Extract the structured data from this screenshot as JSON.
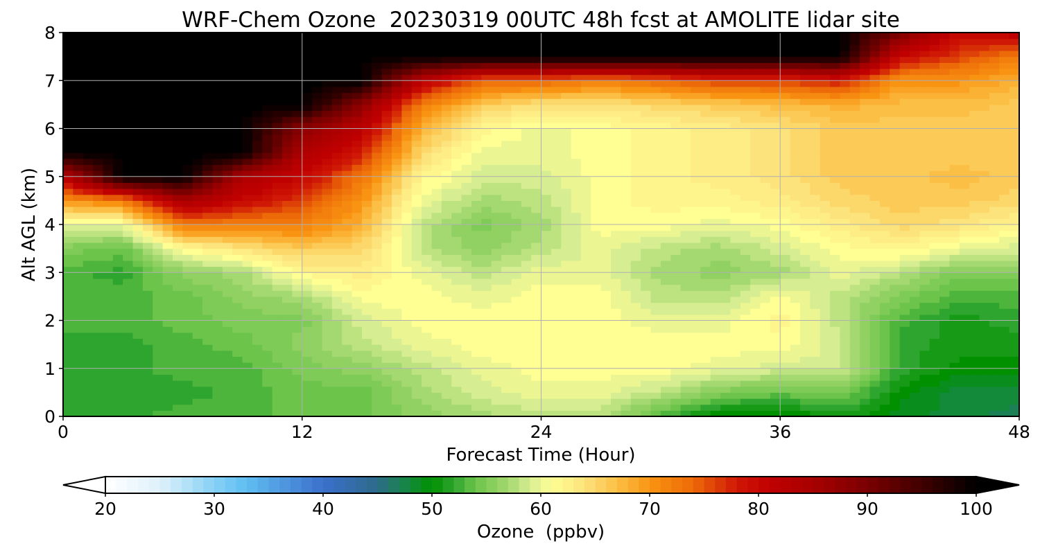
{
  "chart_data": {
    "type": "heatmap",
    "subtype": "filled-contour",
    "title": "WRF-Chem Ozone  20230319 00UTC 48h fcst at AMOLITE lidar site",
    "xlabel": "Forecast Time (Hour)",
    "ylabel": "Alt AGL (km)",
    "xlim": [
      0,
      48
    ],
    "ylim": [
      0,
      8
    ],
    "xticks": [
      0,
      12,
      24,
      36,
      48
    ],
    "yticks": [
      0,
      1,
      2,
      3,
      4,
      5,
      6,
      7,
      8
    ],
    "grid": true,
    "x": [
      0,
      3,
      6,
      9,
      12,
      15,
      18,
      21,
      24,
      27,
      30,
      33,
      36,
      39,
      42,
      45,
      48
    ],
    "y": [
      0,
      0.5,
      1,
      1.5,
      2,
      2.5,
      3,
      3.5,
      4,
      4.5,
      5,
      5.5,
      6,
      6.5,
      7,
      7.5,
      8
    ],
    "z_rows_by_altitude": [
      [
        52,
        52,
        53,
        53,
        54,
        54,
        56,
        57,
        58,
        58,
        53,
        49,
        49,
        51,
        49,
        48,
        47
      ],
      [
        52,
        52,
        52,
        53,
        54,
        54,
        57,
        59,
        60,
        60,
        58,
        55,
        54,
        55,
        50,
        48,
        48
      ],
      [
        52,
        52,
        53,
        53,
        55,
        56,
        58,
        60,
        61,
        61,
        61,
        60,
        59,
        59,
        52,
        50,
        50
      ],
      [
        52,
        52,
        53,
        54,
        56,
        58,
        60,
        61,
        61,
        61,
        61,
        61,
        61,
        59,
        52,
        51,
        51
      ],
      [
        53,
        53,
        54,
        55,
        55,
        59,
        61,
        61,
        61,
        61,
        60,
        60,
        62,
        58,
        53,
        51,
        52
      ],
      [
        53,
        53,
        54,
        56,
        57,
        61,
        61,
        60,
        61,
        61,
        58,
        58,
        61,
        58,
        55,
        53,
        53
      ],
      [
        53,
        52,
        56,
        57,
        62,
        63,
        60,
        58,
        60,
        60,
        57,
        56,
        57,
        60,
        58,
        55,
        55
      ],
      [
        55,
        54,
        61,
        64,
        66,
        65,
        58,
        56,
        58,
        60,
        58,
        57,
        59,
        61,
        62,
        60,
        59
      ],
      [
        60,
        60,
        73,
        72,
        72,
        68,
        58,
        55,
        57,
        61,
        61,
        60,
        61,
        63,
        65,
        64,
        62
      ],
      [
        70,
        72,
        85,
        80,
        76,
        70,
        60,
        57,
        58,
        61,
        62,
        62,
        63,
        65,
        66,
        66,
        65
      ],
      [
        82,
        100,
        100,
        84,
        80,
        73,
        62,
        59,
        59,
        61,
        62,
        63,
        64,
        66,
        66,
        67,
        66
      ],
      [
        100,
        100,
        100,
        100,
        84,
        78,
        65,
        60,
        60,
        61,
        62,
        63,
        64,
        66,
        66,
        66,
        66
      ],
      [
        100,
        100,
        100,
        100,
        88,
        82,
        68,
        62,
        60,
        61,
        62,
        63,
        64,
        66,
        66,
        66,
        66
      ],
      [
        100,
        100,
        100,
        100,
        100,
        88,
        72,
        66,
        64,
        64,
        65,
        66,
        67,
        68,
        67,
        67,
        66
      ],
      [
        100,
        100,
        100,
        100,
        100,
        100,
        82,
        74,
        74,
        72,
        74,
        76,
        76,
        78,
        70,
        70,
        68
      ],
      [
        100,
        100,
        100,
        100,
        100,
        100,
        100,
        100,
        100,
        100,
        100,
        100,
        100,
        100,
        80,
        76,
        72
      ],
      [
        100,
        100,
        100,
        100,
        100,
        100,
        100,
        100,
        100,
        100,
        100,
        100,
        100,
        100,
        90,
        80,
        82
      ]
    ],
    "colorbar": {
      "label": "Ozone  (ppbv)",
      "orientation": "horizontal",
      "vmin": 20,
      "vmax": 100,
      "ticks": [
        20,
        30,
        40,
        50,
        60,
        70,
        80,
        90,
        100
      ],
      "extend": "both",
      "colors": [
        {
          "v": 20,
          "c": "#ffffff"
        },
        {
          "v": 25,
          "c": "#dff1fb"
        },
        {
          "v": 30,
          "c": "#86d0f5"
        },
        {
          "v": 33,
          "c": "#5fbef2"
        },
        {
          "v": 37,
          "c": "#4b90db"
        },
        {
          "v": 40,
          "c": "#3b6fcd"
        },
        {
          "v": 45,
          "c": "#2e6b8a"
        },
        {
          "v": 48,
          "c": "#128a3a"
        },
        {
          "v": 50,
          "c": "#009000"
        },
        {
          "v": 52,
          "c": "#2ea52e"
        },
        {
          "v": 54,
          "c": "#6cc44a"
        },
        {
          "v": 57,
          "c": "#a4d870"
        },
        {
          "v": 59,
          "c": "#d6ed92"
        },
        {
          "v": 61,
          "c": "#ffff94"
        },
        {
          "v": 64,
          "c": "#fde37c"
        },
        {
          "v": 67,
          "c": "#fbbf45"
        },
        {
          "v": 70,
          "c": "#f99412"
        },
        {
          "v": 74,
          "c": "#ed6a08"
        },
        {
          "v": 78,
          "c": "#cf1805"
        },
        {
          "v": 81,
          "c": "#c00000"
        },
        {
          "v": 85,
          "c": "#a80000"
        },
        {
          "v": 90,
          "c": "#7a0000"
        },
        {
          "v": 95,
          "c": "#400000"
        },
        {
          "v": 100,
          "c": "#000000"
        }
      ]
    }
  }
}
